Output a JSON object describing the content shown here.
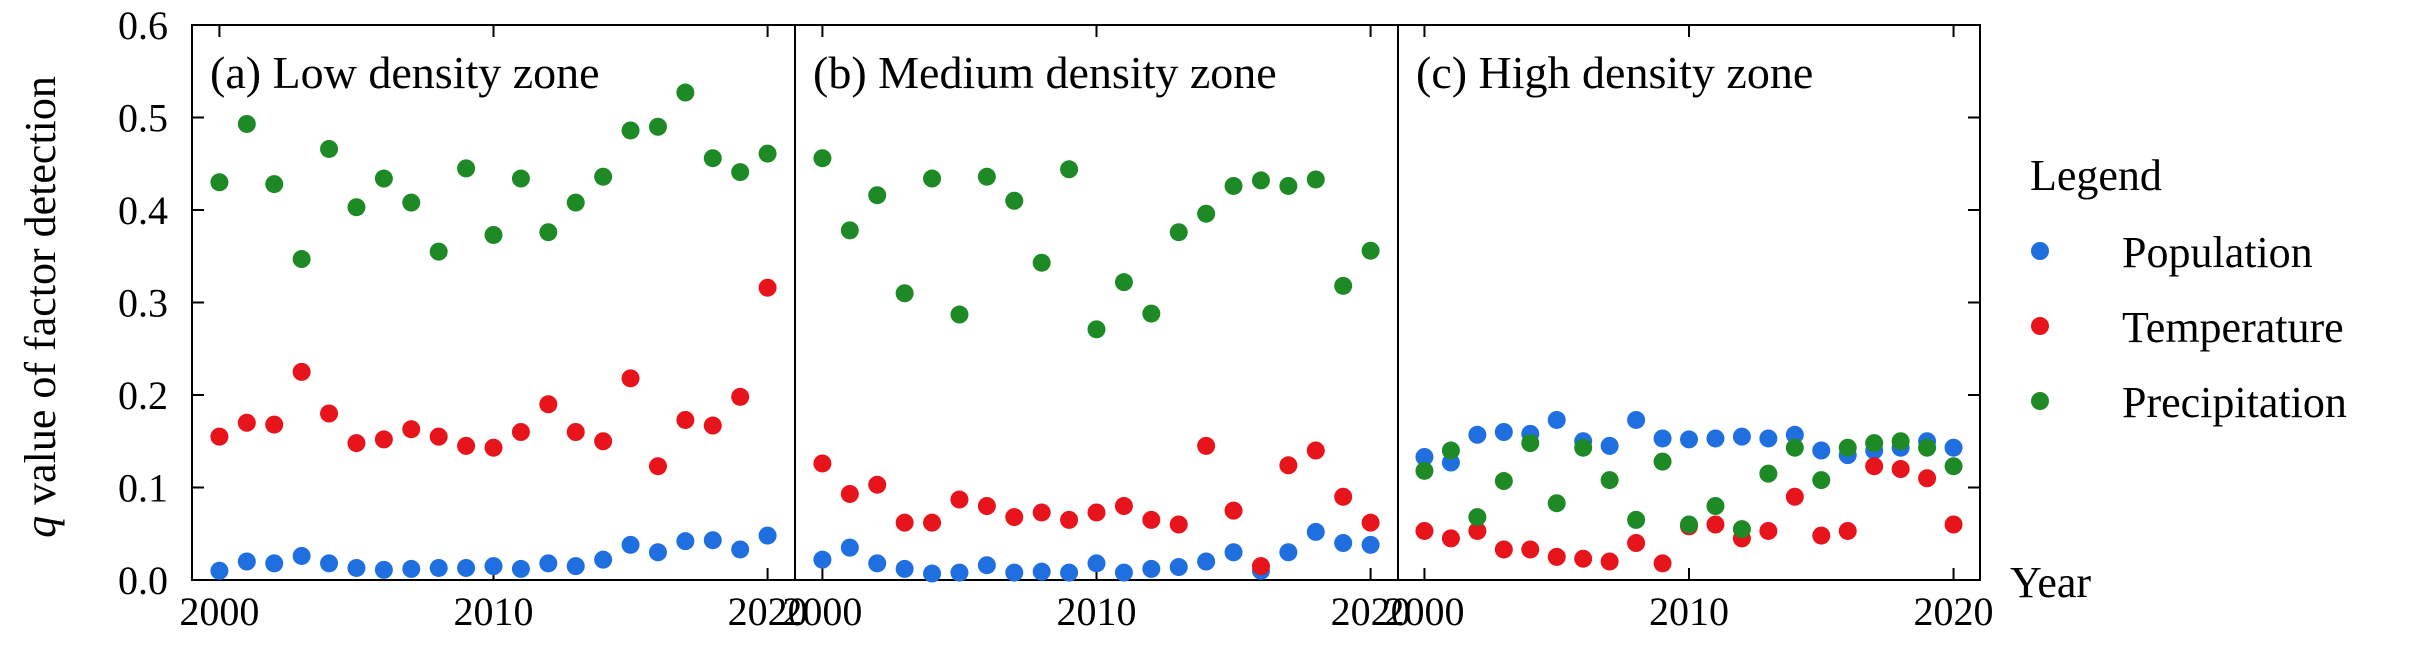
{
  "chart_data": {
    "type": "scatter",
    "ylabel_italic": "q",
    "ylabel_rest": " value of factor detection",
    "xlabel": "Year",
    "ylim": [
      0,
      0.6
    ],
    "yticks": [
      0.0,
      0.1,
      0.2,
      0.3,
      0.4,
      0.5,
      0.6
    ],
    "ytick_labels": [
      "0.0",
      "0.1",
      "0.2",
      "0.3",
      "0.4",
      "0.5",
      "0.6"
    ],
    "xlim": [
      1999,
      2021
    ],
    "xticks": [
      2000,
      2010,
      2020
    ],
    "xtick_labels": [
      "2000",
      "2010",
      "2020"
    ],
    "x": [
      2000,
      2001,
      2002,
      2003,
      2004,
      2005,
      2006,
      2007,
      2008,
      2009,
      2010,
      2011,
      2012,
      2013,
      2014,
      2015,
      2016,
      2017,
      2018,
      2019,
      2020
    ],
    "legend": {
      "title": "Legend",
      "items": [
        {
          "name": "Population",
          "color": "#1f6fe0"
        },
        {
          "name": "Temperature",
          "color": "#e8141c"
        },
        {
          "name": "Precipitation",
          "color": "#1e8a26"
        }
      ]
    },
    "panels": [
      {
        "title": "(a) Low density zone",
        "series": {
          "Population": [
            0.01,
            0.02,
            0.018,
            0.026,
            0.018,
            0.013,
            0.011,
            0.012,
            0.013,
            0.013,
            0.015,
            0.012,
            0.018,
            0.015,
            0.022,
            0.038,
            0.03,
            0.042,
            0.043,
            0.033,
            0.048
          ],
          "Temperature": [
            0.155,
            0.17,
            0.168,
            0.225,
            0.18,
            0.148,
            0.152,
            0.163,
            0.155,
            0.145,
            0.143,
            0.16,
            0.19,
            0.16,
            0.15,
            0.218,
            0.123,
            0.173,
            0.167,
            0.198,
            0.316
          ],
          "Precipitation": [
            0.43,
            0.493,
            0.428,
            0.347,
            0.466,
            0.403,
            0.434,
            0.408,
            0.355,
            0.445,
            0.373,
            0.434,
            0.376,
            0.408,
            0.436,
            0.486,
            0.49,
            0.527,
            0.456,
            0.441,
            0.461
          ]
        }
      },
      {
        "title": "(b) Medium density zone",
        "series": {
          "Population": [
            0.022,
            0.035,
            0.018,
            0.012,
            0.007,
            0.008,
            0.016,
            0.008,
            0.009,
            0.008,
            0.018,
            0.008,
            0.012,
            0.014,
            0.02,
            0.03,
            0.01,
            0.03,
            0.052,
            0.04,
            0.038
          ],
          "Temperature": [
            0.126,
            0.093,
            0.103,
            0.062,
            0.062,
            0.087,
            0.08,
            0.068,
            0.073,
            0.065,
            0.073,
            0.08,
            0.065,
            0.06,
            0.145,
            0.075,
            0.015,
            0.124,
            0.14,
            0.09,
            0.062
          ],
          "Precipitation": [
            0.456,
            0.378,
            0.416,
            0.31,
            0.434,
            0.287,
            0.436,
            0.41,
            0.343,
            0.444,
            0.271,
            0.322,
            0.288,
            0.376,
            0.396,
            0.426,
            0.432,
            0.426,
            0.433,
            0.318,
            0.356
          ]
        }
      },
      {
        "title": "(c) High density zone",
        "series": {
          "Population": [
            0.133,
            0.127,
            0.157,
            0.16,
            0.158,
            0.173,
            0.15,
            0.145,
            0.173,
            0.153,
            0.152,
            0.153,
            0.155,
            0.153,
            0.157,
            0.14,
            0.135,
            0.14,
            0.143,
            0.15,
            0.143
          ],
          "Temperature": [
            0.053,
            0.045,
            0.053,
            0.033,
            0.033,
            0.025,
            0.023,
            0.02,
            0.04,
            0.018,
            0.058,
            0.06,
            0.045,
            0.053,
            0.09,
            0.048,
            0.053,
            0.123,
            0.12,
            0.11,
            0.06
          ],
          "Precipitation": [
            0.118,
            0.14,
            0.068,
            0.107,
            0.148,
            0.083,
            0.143,
            0.108,
            0.065,
            0.128,
            0.06,
            0.08,
            0.055,
            0.115,
            0.143,
            0.108,
            0.143,
            0.148,
            0.15,
            0.143,
            0.123
          ]
        }
      }
    ]
  }
}
